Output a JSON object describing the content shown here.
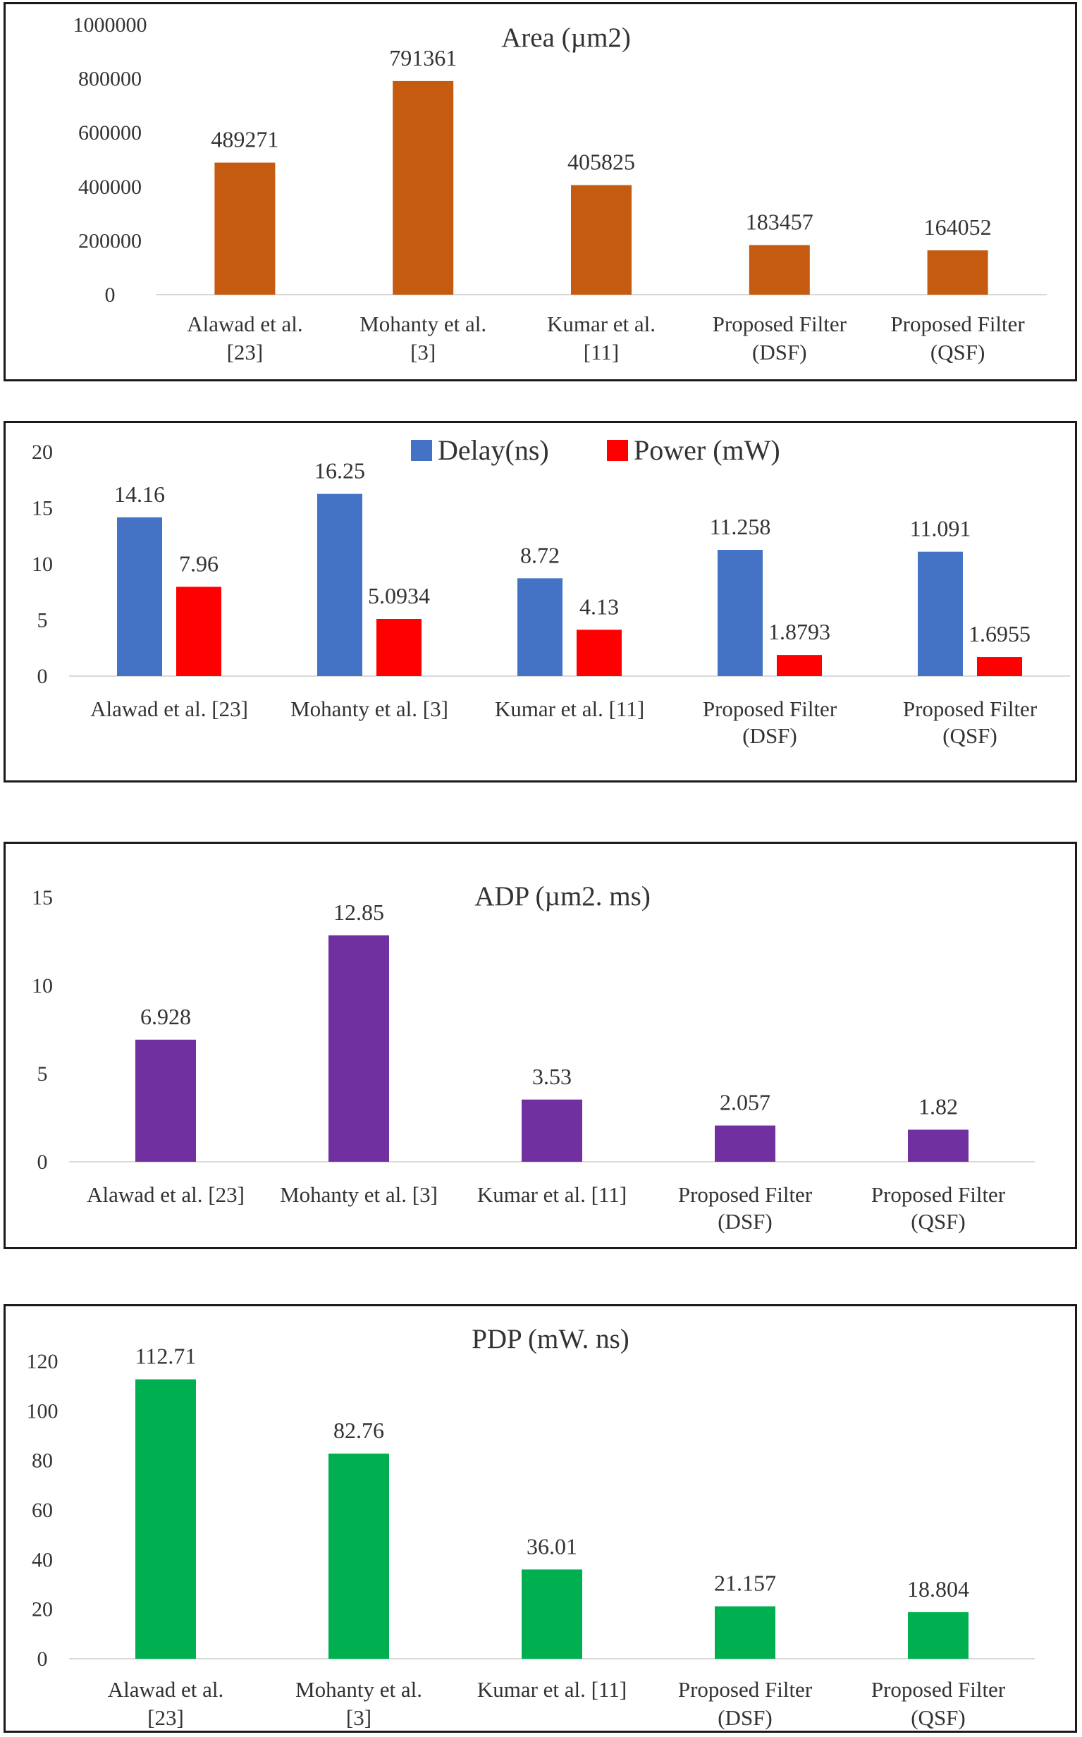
{
  "chart_data": [
    {
      "type": "bar",
      "title": "Area (µm2)",
      "categories": [
        "Alawad et al.\n[23]",
        "Mohanty et al.\n[3]",
        "Kumar et al.\n[11]",
        "Proposed Filter\n(DSF)",
        "Proposed Filter\n(QSF)"
      ],
      "series": [
        {
          "values": [
            489271,
            791361,
            405825,
            183457,
            164052
          ],
          "color": "#c55a11"
        }
      ],
      "ylim": [
        0,
        1000000
      ],
      "yticks": [
        0,
        200000,
        400000,
        600000,
        800000,
        1000000
      ],
      "grid": false,
      "legend": "none"
    },
    {
      "type": "bar",
      "title": "",
      "categories": [
        "Alawad et al. [23]",
        "Mohanty et al. [3]",
        "Kumar et al. [11]",
        "Proposed Filter\n(DSF)",
        "Proposed Filter\n(QSF)"
      ],
      "series": [
        {
          "name": "Delay(ns)",
          "values": [
            14.16,
            16.25,
            8.72,
            11.258,
            11.091
          ],
          "labels": [
            "14.16",
            "16.25",
            "8.72",
            "11.258",
            "11.091"
          ],
          "color": "#4472c4"
        },
        {
          "name": "Power (mW)",
          "values": [
            7.96,
            5.0934,
            4.13,
            1.8793,
            1.6955
          ],
          "labels": [
            "7.96",
            "5.0934",
            "4.13",
            "1.8793",
            "1.6955"
          ],
          "color": "#ff0000"
        }
      ],
      "ylim": [
        0,
        20
      ],
      "yticks": [
        0,
        5,
        10,
        15,
        20
      ],
      "grid": false,
      "legend": "top-center"
    },
    {
      "type": "bar",
      "title": "ADP (µm2.  ms)",
      "categories": [
        "Alawad et al. [23]",
        "Mohanty et al. [3]",
        "Kumar et al. [11]",
        "Proposed Filter\n(DSF)",
        "Proposed Filter\n(QSF)"
      ],
      "series": [
        {
          "values": [
            6.928,
            12.85,
            3.53,
            2.057,
            1.82
          ],
          "labels": [
            "6.928",
            "12.85",
            "3.53",
            "2.057",
            "1.82"
          ],
          "color": "#7030a0"
        }
      ],
      "ylim": [
        0,
        15
      ],
      "yticks": [
        0,
        5,
        10,
        15
      ],
      "grid": false,
      "legend": "none"
    },
    {
      "type": "bar",
      "title": "PDP (mW. ns)",
      "categories": [
        "Alawad et al.\n[23]",
        "Mohanty et al.\n[3]",
        "Kumar et al. [11]",
        "Proposed Filter\n(DSF)",
        "Proposed Filter\n(QSF)"
      ],
      "series": [
        {
          "values": [
            112.71,
            82.76,
            36.01,
            21.157,
            18.804
          ],
          "labels": [
            "112.71",
            "82.76",
            "36.01",
            "21.157",
            "18.804"
          ],
          "color": "#00b050"
        }
      ],
      "ylim": [
        0,
        120
      ],
      "yticks": [
        0,
        20,
        40,
        60,
        80,
        100,
        120
      ],
      "grid": false,
      "legend": "none"
    }
  ]
}
